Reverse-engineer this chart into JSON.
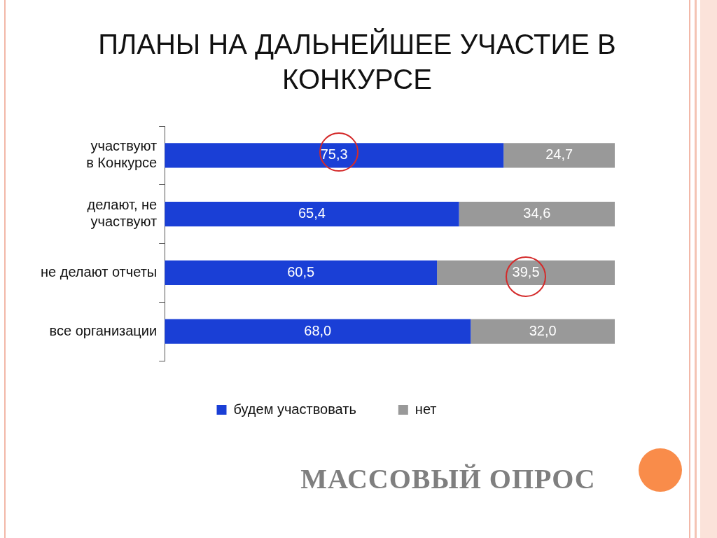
{
  "chart_data": {
    "type": "bar",
    "orientation": "horizontal",
    "stacked": true,
    "title": "ПЛАНЫ НА ДАЛЬНЕЙШЕЕ УЧАСТИЕ В КОНКУРСЕ",
    "categories": [
      "участвуют в Конкурсе",
      "делают, не участвуют",
      "не делают отчеты",
      "все организации"
    ],
    "series": [
      {
        "name": "будем участвовать",
        "color": "#1a3fd6",
        "values": [
          75.3,
          65.4,
          60.5,
          68.0
        ],
        "value_labels": [
          "75,3",
          "65,4",
          "60,5",
          "68,0"
        ]
      },
      {
        "name": "нет",
        "color": "#999999",
        "values": [
          24.7,
          34.6,
          39.5,
          32.0
        ],
        "value_labels": [
          "24,7",
          "34,6",
          "39,5",
          "32,0"
        ]
      }
    ],
    "tick_labels": "y",
    "grid": false,
    "legend": "bottom",
    "annotations": [
      "МАССОВЫЙ ОПРОС"
    ]
  }
}
